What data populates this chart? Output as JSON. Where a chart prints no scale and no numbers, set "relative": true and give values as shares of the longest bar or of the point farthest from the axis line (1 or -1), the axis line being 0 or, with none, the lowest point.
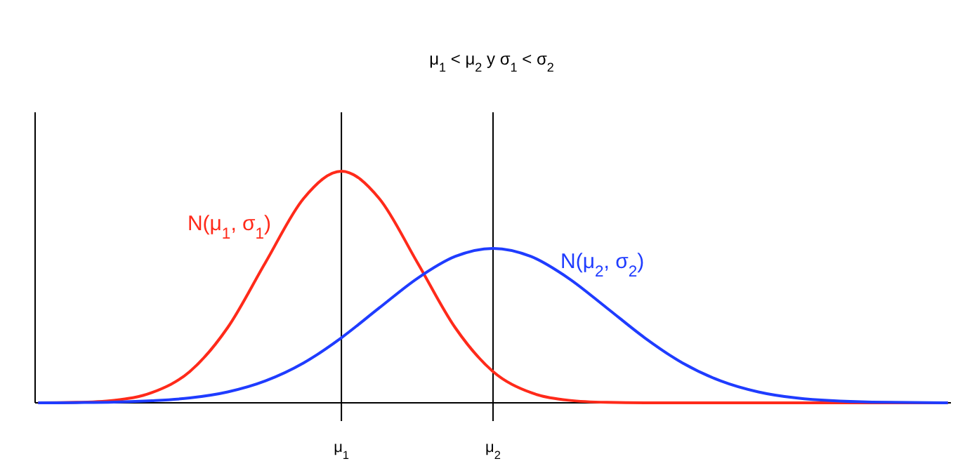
{
  "chart_data": {
    "type": "line",
    "title": "μ$_{1}$ < μ$_{2}$ y σ$_{1}$ < σ$_{2}$",
    "relative": true,
    "x": [
      -1,
      -0.75,
      -0.5,
      -0.25,
      0,
      0.25,
      0.5,
      0.75,
      1,
      1.25,
      1.5,
      1.75,
      2,
      2.25,
      2.5,
      2.75,
      3,
      3.25,
      3.5,
      3.75,
      4,
      4.5,
      5
    ],
    "xlim": [
      -1.02,
      5.02
    ],
    "xticks": [
      {
        "value": 1,
        "label": "μ$_{1}$"
      },
      {
        "value": 2,
        "label": "μ$_{2}$"
      }
    ],
    "series": [
      {
        "name": "N(μ$_{1}$, σ$_{1}$)",
        "color": "#ff2a1a",
        "values": [
          0,
          0.002,
          0.011,
          0.044,
          0.135,
          0.325,
          0.607,
          0.882,
          1,
          0.882,
          0.607,
          0.325,
          0.135,
          0.044,
          0.011,
          0.002,
          0,
          0,
          0,
          0,
          0,
          0,
          0
        ]
      },
      {
        "name": "N(μ$_{2}$, σ$_{2}$)",
        "color": "#1f3cff",
        "values": [
          0,
          0.001,
          0.003,
          0.009,
          0.021,
          0.047,
          0.095,
          0.172,
          0.281,
          0.41,
          0.537,
          0.632,
          0.667,
          0.632,
          0.537,
          0.41,
          0.281,
          0.172,
          0.095,
          0.047,
          0.021,
          0.003,
          0
        ]
      }
    ],
    "ref_lines": [
      {
        "axis": "x",
        "value": 1,
        "color": "#000000"
      },
      {
        "axis": "x",
        "value": 2,
        "color": "#000000"
      }
    ],
    "grid": false,
    "legend": false,
    "marker": "none",
    "line_style": "solid"
  }
}
